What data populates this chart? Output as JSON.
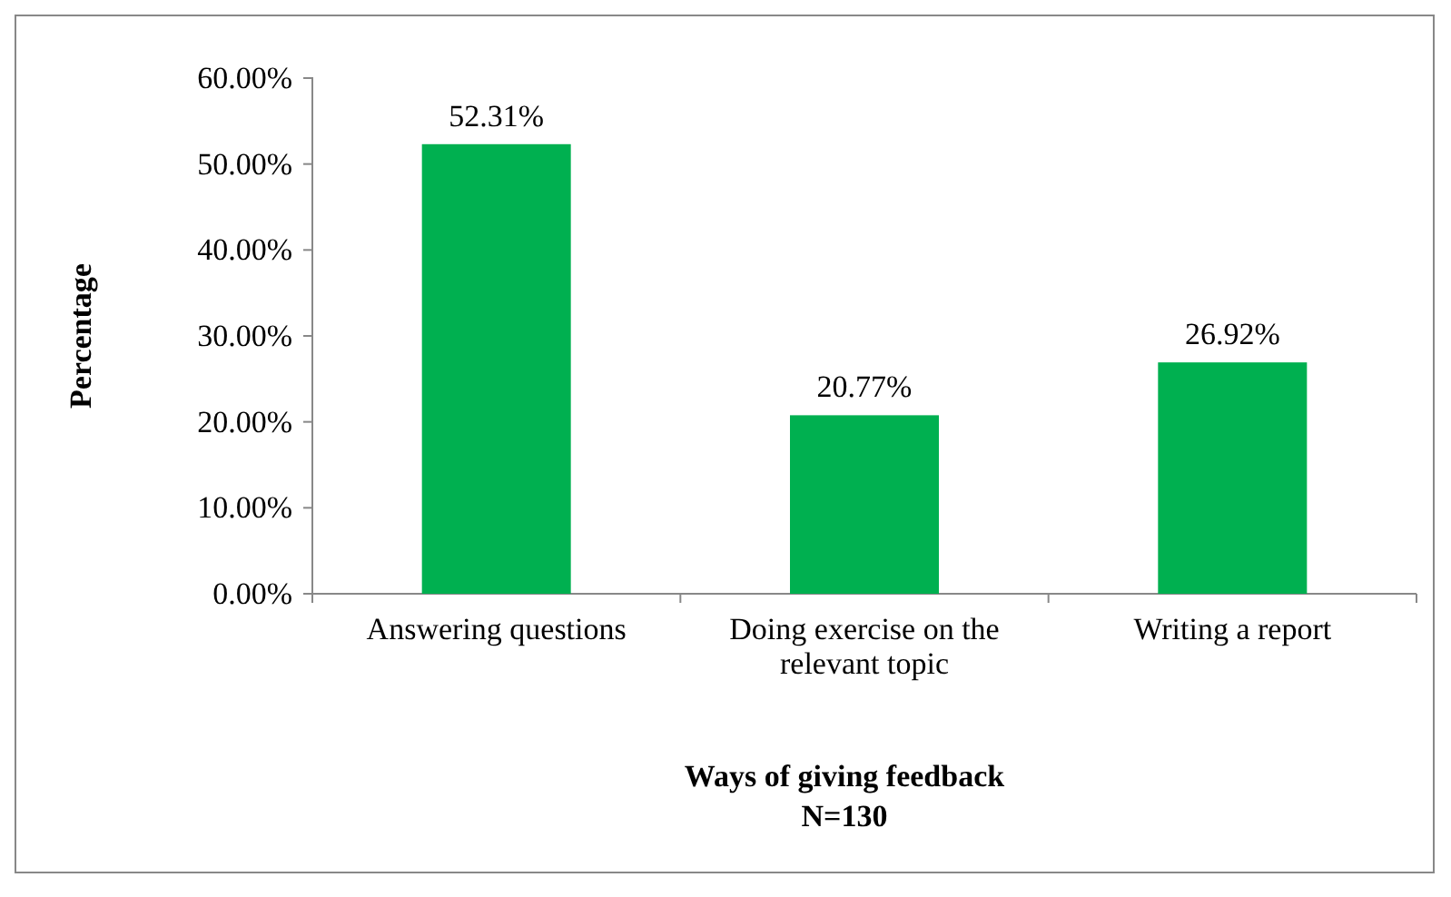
{
  "chart_data": {
    "type": "bar",
    "xlabel": "Ways of giving feedback",
    "ylabel": "Percentage",
    "annotations": [
      "N=130"
    ],
    "categories": [
      "Answering questions",
      "Doing exercise on the relevant topic",
      "Writing a report"
    ],
    "values": [
      52.31,
      20.77,
      26.92
    ],
    "color": "#00b050",
    "value_labels": [
      "52.31%",
      "20.77%",
      "26.92%"
    ],
    "ylim": [
      0,
      60
    ],
    "yticks": [
      {
        "value": 0,
        "label": "0.00%"
      },
      {
        "value": 10,
        "label": "10.00%"
      },
      {
        "value": 20,
        "label": "20.00%"
      },
      {
        "value": 30,
        "label": "30.00%"
      },
      {
        "value": 40,
        "label": "40.00%"
      },
      {
        "value": 50,
        "label": "50.00%"
      },
      {
        "value": 60,
        "label": "60.00%"
      }
    ],
    "grid": false
  }
}
